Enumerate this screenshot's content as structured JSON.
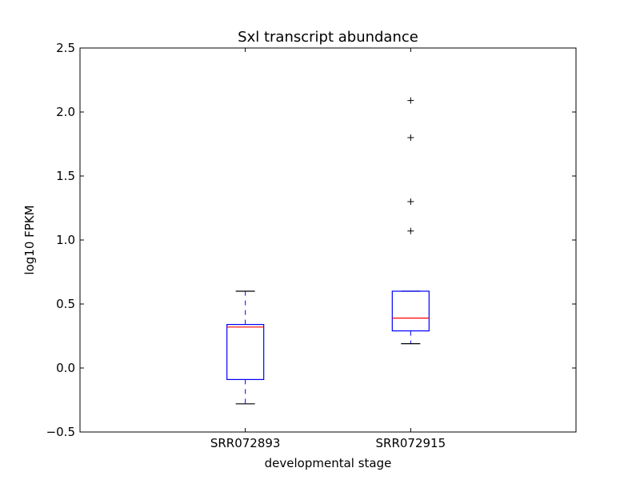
{
  "chart_data": {
    "type": "box",
    "title": "Sxl transcript abundance",
    "xlabel": "developmental stage",
    "ylabel": "log10 FPKM",
    "ylim": [
      -0.5,
      2.5
    ],
    "yticks": [
      -0.5,
      0.0,
      0.5,
      1.0,
      1.5,
      2.0,
      2.5
    ],
    "ytick_labels": [
      "−0.5",
      "0.0",
      "0.5",
      "1.0",
      "1.5",
      "2.0",
      "2.5"
    ],
    "grid": false,
    "categories": [
      "SRR072893",
      "SRR072915"
    ],
    "boxes": [
      {
        "category": "SRR072893",
        "whisker_low": -0.28,
        "q1": -0.09,
        "median": 0.32,
        "q3": 0.34,
        "whisker_high": 0.6,
        "outliers": []
      },
      {
        "category": "SRR072915",
        "whisker_low": 0.19,
        "q1": 0.29,
        "median": 0.39,
        "q3": 0.6,
        "whisker_high": 0.6,
        "outliers": [
          1.07,
          1.3,
          1.8,
          2.09
        ]
      }
    ],
    "colors": {
      "box": "#0000ff",
      "median": "#ff0000",
      "whisker": "#0000ff",
      "cap": "#000000",
      "outlier": "#000000",
      "axes": "#000000"
    }
  }
}
